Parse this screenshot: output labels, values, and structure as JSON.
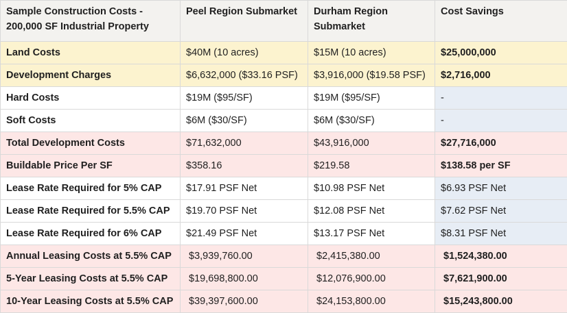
{
  "headers": [
    "Sample Construction Costs - 200,000 SF Industrial Property",
    "Peel Region Submarket",
    "Durham Region Submarket",
    "Cost Savings"
  ],
  "rows": [
    {
      "label": "Land Costs",
      "peel": "$40M (10 acres)",
      "durham": "$15M (10 acres)",
      "savings": "$25,000,000"
    },
    {
      "label": "Development Charges",
      "peel": "$6,632,000 ($33.16 PSF)",
      "durham": "$3,916,000 ($19.58 PSF)",
      "savings": "$2,716,000"
    },
    {
      "label": "Hard Costs",
      "peel": "$19M ($95/SF)",
      "durham": "$19M ($95/SF)",
      "savings": "-"
    },
    {
      "label": "Soft Costs",
      "peel": "$6M ($30/SF)",
      "durham": "$6M ($30/SF)",
      "savings": "-"
    },
    {
      "label": "Total Development Costs",
      "peel": "$71,632,000",
      "durham": "$43,916,000",
      "savings": "$27,716,000"
    },
    {
      "label": "Buildable Price Per SF",
      "peel": "$358.16",
      "durham": "$219.58",
      "savings": "$138.58 per SF"
    },
    {
      "label": "Lease Rate Required for 5% CAP",
      "peel": "$17.91 PSF Net",
      "durham": "$10.98 PSF Net",
      "savings": "$6.93 PSF Net"
    },
    {
      "label": "Lease Rate Required for 5.5% CAP",
      "peel": "$19.70 PSF Net",
      "durham": "$12.08 PSF Net",
      "savings": "$7.62 PSF Net"
    },
    {
      "label": "Lease Rate Required for 6% CAP",
      "peel": "$21.49 PSF Net",
      "durham": "$13.17 PSF Net",
      "savings": "$8.31 PSF Net"
    },
    {
      "label": "Annual Leasing Costs at 5.5% CAP",
      "peel": "$3,939,760.00",
      "durham": "$2,415,380.00",
      "savings": "$1,524,380.00"
    },
    {
      "label": "5-Year Leasing Costs at 5.5% CAP",
      "peel": "$19,698,800.00",
      "durham": "$12,076,900.00",
      "savings": "$7,621,900.00"
    },
    {
      "label": "10-Year Leasing Costs at 5.5% CAP",
      "peel": "$39,397,600.00",
      "durham": "$24,153,800.00",
      "savings": "$15,243,800.00"
    }
  ],
  "colors": {
    "header_bg": "#f3f2ef",
    "yellow_row": "#fcf3cf",
    "pink_row": "#fde7e6",
    "blue_cell": "#e7edf5",
    "border": "#d9d9d9"
  }
}
